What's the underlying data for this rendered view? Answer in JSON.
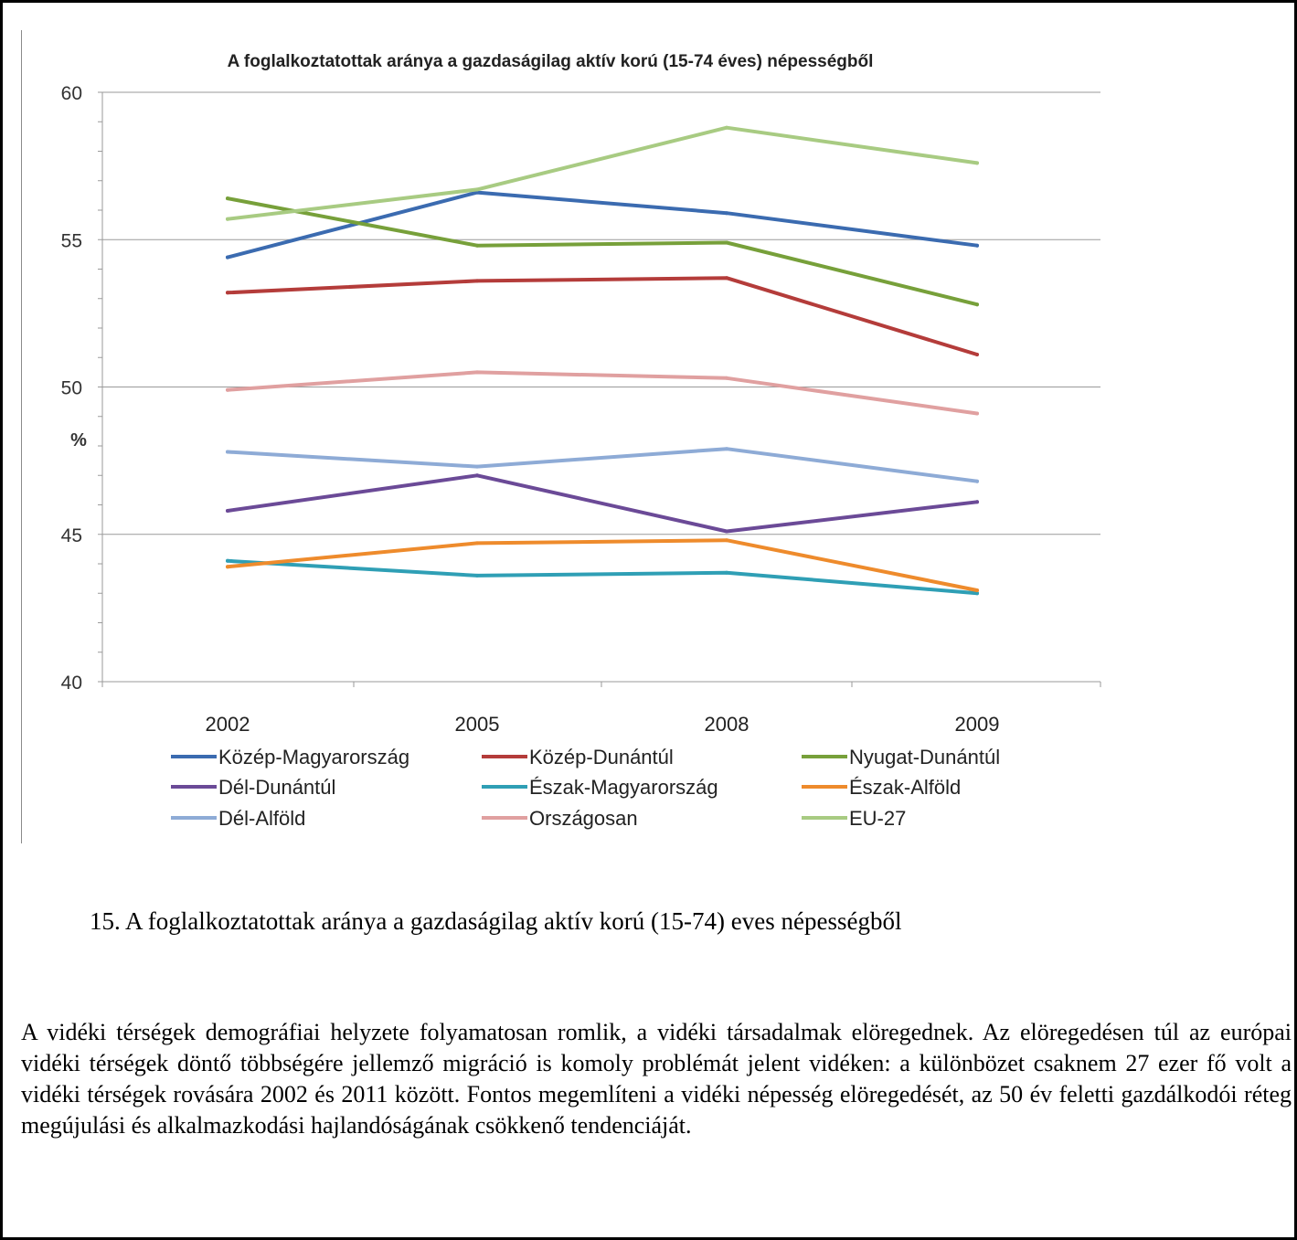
{
  "chart_data": {
    "type": "line",
    "title": "A foglalkoztatottak aránya a gazdaságilag aktív korú (15-74 éves) népességből",
    "ylabel": "%",
    "xlabel": "",
    "categories": [
      "2002",
      "2005",
      "2008",
      "2009"
    ],
    "ylim": [
      40,
      60
    ],
    "yticks": [
      "40",
      "45",
      "50",
      "55",
      "60"
    ],
    "grid": true,
    "legend_position": "bottom",
    "series": [
      {
        "name": "Közép-Magyarország",
        "color": "#3b6bb0",
        "values": [
          54.4,
          56.6,
          55.9,
          54.8
        ]
      },
      {
        "name": "Közép-Dunántúl",
        "color": "#b43c3a",
        "values": [
          53.2,
          53.6,
          53.7,
          51.1
        ]
      },
      {
        "name": "Nyugat-Dunántúl",
        "color": "#77a03a",
        "values": [
          56.4,
          54.8,
          54.9,
          52.8
        ]
      },
      {
        "name": "Dél-Dunántúl",
        "color": "#6b4a97",
        "values": [
          45.8,
          47.0,
          45.1,
          46.1
        ]
      },
      {
        "name": "Észak-Magyarország",
        "color": "#2f9fb5",
        "values": [
          44.1,
          43.6,
          43.7,
          43.0
        ]
      },
      {
        "name": "Észak-Alföld",
        "color": "#ee8b2c",
        "values": [
          43.9,
          44.7,
          44.8,
          43.1
        ]
      },
      {
        "name": "Dél-Alföld",
        "color": "#8eabd6",
        "values": [
          47.8,
          47.3,
          47.9,
          46.8
        ]
      },
      {
        "name": "Országosan",
        "color": "#e0a0a0",
        "values": [
          49.9,
          50.5,
          50.3,
          49.1
        ]
      },
      {
        "name": "EU-27",
        "color": "#a8cb82",
        "values": [
          55.7,
          56.7,
          58.8,
          57.6
        ]
      }
    ]
  },
  "caption": "15. A foglalkoztatottak aránya a gazdaságilag aktív korú (15-74) eves népességből",
  "paragraph": "A vidéki térségek demográfiai helyzete folyamatosan romlik, a vidéki társadalmak elöregednek. Az elöregedésen túl az európai vidéki térségek döntő többségére jellemző migráció is komoly problémát jelent vidéken: a különbözet csaknem 27 ezer fő volt a vidéki térségek rovására 2002 és 2011 között. Fontos megemlíteni a vidéki népesség elöregedését, az 50 év feletti gazdálkodói réteg megújulási és alkalmazkodási hajlandóságának csökkenő tendenciáját."
}
